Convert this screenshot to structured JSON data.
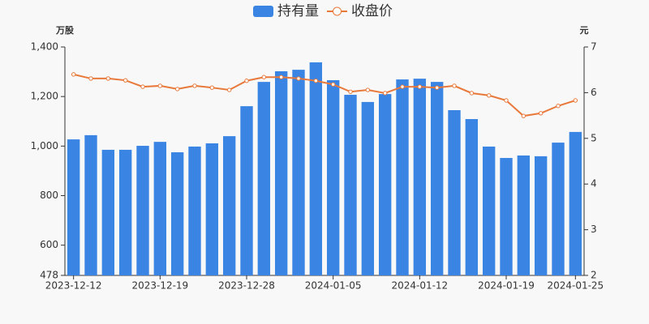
{
  "chart_data": {
    "type": "bar_line",
    "categories": [
      "2023-12-12",
      null,
      null,
      null,
      null,
      "2023-12-19",
      null,
      null,
      null,
      null,
      "2023-12-28",
      null,
      null,
      null,
      null,
      "2024-01-05",
      null,
      null,
      null,
      null,
      "2024-01-12",
      null,
      null,
      null,
      null,
      "2024-01-19",
      null,
      null,
      null,
      "2024-01-25"
    ],
    "series": [
      {
        "name": "持有量",
        "color": "#3a84e3",
        "type": "bar",
        "axis": "y",
        "values": [
          1027,
          1044,
          985,
          985,
          1001,
          1017,
          975,
          998,
          1011,
          1040,
          1161,
          1259,
          1302,
          1308,
          1338,
          1266,
          1207,
          1178,
          1210,
          1269,
          1272,
          1259,
          1145,
          1109,
          998,
          952,
          962,
          959,
          1014,
          1057
        ]
      },
      {
        "name": "收盘价",
        "color": "#e8793a",
        "type": "line",
        "axis": "y2",
        "values": [
          6.4,
          6.31,
          6.31,
          6.27,
          6.13,
          6.15,
          6.08,
          6.15,
          6.11,
          6.06,
          6.26,
          6.34,
          6.34,
          6.31,
          6.26,
          6.18,
          6.02,
          6.06,
          5.99,
          6.13,
          6.13,
          6.11,
          6.15,
          5.99,
          5.94,
          5.83,
          5.49,
          5.55,
          5.71,
          5.83
        ]
      }
    ],
    "y_unit": "万股",
    "y2_unit": "元",
    "ylim": [
      478,
      1400
    ],
    "yticks": [
      478,
      600,
      800,
      {
        "value": 1000,
        "label": "1,000"
      },
      {
        "value": 1200,
        "label": "1,200"
      },
      {
        "value": 1400,
        "label": "1,400"
      }
    ],
    "y2lim": [
      2,
      7
    ],
    "y2ticks": [
      2,
      3,
      4,
      5,
      6,
      7
    ]
  }
}
